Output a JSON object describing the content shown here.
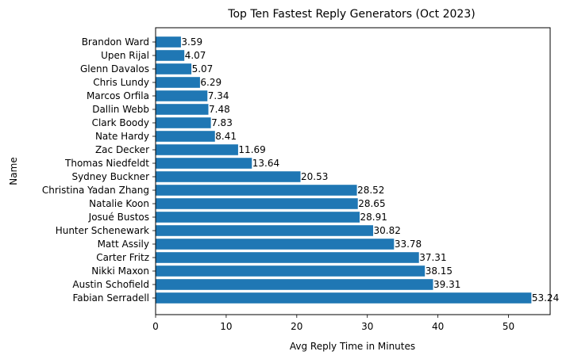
{
  "chart_data": {
    "type": "bar",
    "orientation": "horizontal",
    "title": "Top Ten Fastest Reply Generators (Oct 2023)",
    "xlabel": "Avg Reply Time in Minutes",
    "ylabel": "Name",
    "xlim": [
      0,
      55.9
    ],
    "xticks": [
      0,
      10,
      20,
      30,
      40,
      50
    ],
    "bar_color": "#1f77b4",
    "grid": false,
    "categories": [
      "Fabian Serradell",
      "Austin Schofield",
      "Nikki Maxon",
      "Carter Fritz",
      "Matt Assily",
      "Hunter Schenewark",
      "Josué Bustos",
      "Natalie Koon",
      "Christina Yadan Zhang",
      "Sydney Buckner",
      "Thomas Niedfeldt",
      "Zac Decker",
      "Nate Hardy",
      "Clark Boody",
      "Dallin Webb",
      "Marcos Orfila",
      "Chris Lundy",
      "Glenn Davalos",
      "Upen Rijal",
      "Brandon Ward"
    ],
    "values": [
      53.24,
      39.31,
      38.15,
      37.31,
      33.78,
      30.82,
      28.91,
      28.65,
      28.52,
      20.53,
      13.64,
      11.69,
      8.41,
      7.83,
      7.48,
      7.34,
      6.29,
      5.07,
      4.07,
      3.59
    ],
    "data_labels": [
      "53.24",
      "39.31",
      "38.15",
      "37.31",
      "33.78",
      "30.82",
      "28.91",
      "28.65",
      "28.52",
      "20.53",
      "13.64",
      "11.69",
      "8.41",
      "7.83",
      "7.48",
      "7.34",
      "6.29",
      "5.07",
      "4.07",
      "3.59"
    ]
  }
}
